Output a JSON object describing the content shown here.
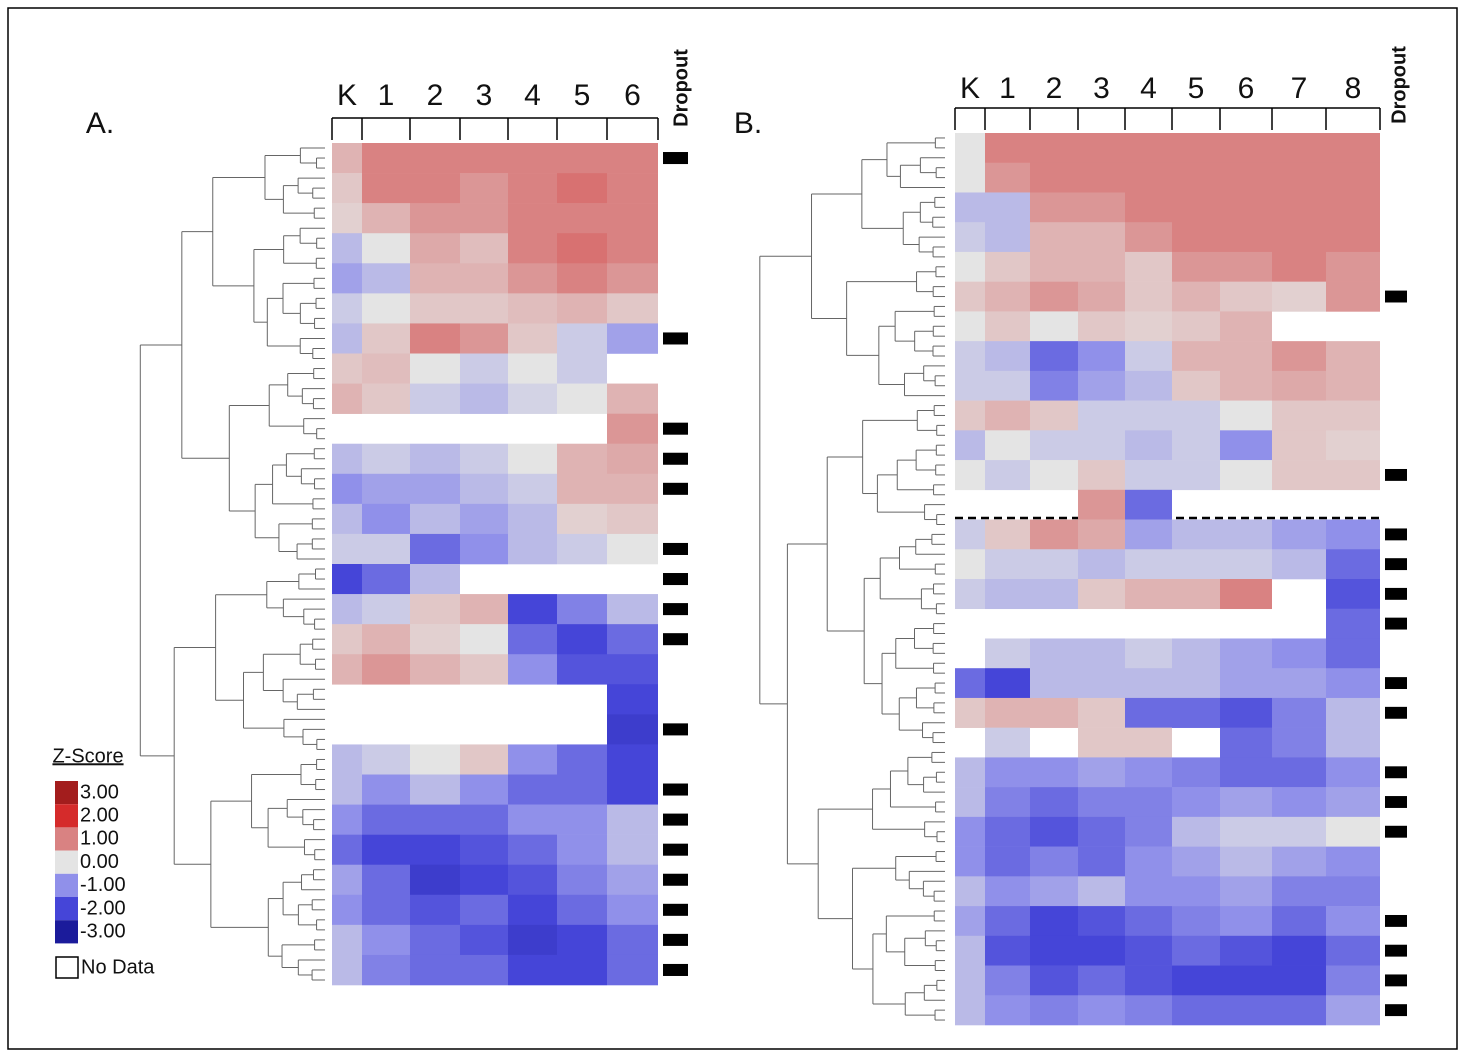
{
  "chart_data": [
    {
      "type": "heatmap",
      "panel_label": "A.",
      "categories": [
        "K",
        "1",
        "2",
        "3",
        "4",
        "5",
        "6"
      ],
      "dropout_label": "Dropout",
      "values": [
        [
          0.5,
          1,
          1,
          1,
          1,
          1,
          1
        ],
        [
          0.3,
          1,
          1,
          0.8,
          1,
          1.2,
          1
        ],
        [
          0.2,
          0.5,
          0.8,
          0.8,
          1,
          1,
          1
        ],
        [
          -0.5,
          0,
          0.6,
          0.4,
          1,
          1.2,
          1
        ],
        [
          -0.8,
          -0.5,
          0.5,
          0.5,
          0.8,
          1,
          0.8
        ],
        [
          -0.3,
          0,
          0.3,
          0.3,
          0.4,
          0.5,
          0.3
        ],
        [
          -0.5,
          0.3,
          1,
          0.8,
          0.3,
          -0.3,
          -0.8
        ],
        [
          0.3,
          0.4,
          0,
          -0.3,
          0,
          -0.3,
          null
        ],
        [
          0.5,
          0.3,
          -0.3,
          -0.5,
          -0.2,
          0,
          0.5
        ],
        [
          null,
          null,
          null,
          null,
          null,
          null,
          0.8
        ],
        [
          -0.5,
          -0.3,
          -0.5,
          -0.3,
          0,
          0.5,
          0.6
        ],
        [
          -1,
          -0.8,
          -0.8,
          -0.5,
          -0.3,
          0.5,
          0.5
        ],
        [
          -0.5,
          -1,
          -0.5,
          -0.8,
          -0.5,
          0.2,
          0.3
        ],
        [
          -0.3,
          -0.3,
          -1.5,
          -1,
          -0.5,
          -0.3,
          0
        ],
        [
          -2,
          -1.5,
          -0.5,
          null,
          null,
          null,
          null
        ],
        [
          -0.5,
          -0.3,
          0.3,
          0.5,
          -2,
          -1.2,
          -0.5
        ],
        [
          0.3,
          0.5,
          0.2,
          0,
          -1.5,
          -2,
          -1.5
        ],
        [
          0.5,
          0.8,
          0.5,
          0.3,
          -1,
          -1.8,
          -1.8
        ],
        [
          null,
          null,
          null,
          null,
          null,
          null,
          -2
        ],
        [
          null,
          null,
          null,
          null,
          null,
          null,
          -2.2
        ],
        [
          -0.5,
          -0.3,
          0,
          0.3,
          -1,
          -1.5,
          -2
        ],
        [
          -0.5,
          -1,
          -0.5,
          -1,
          -1.5,
          -1.5,
          -2
        ],
        [
          -1,
          -1.5,
          -1.5,
          -1.5,
          -1,
          -1,
          -0.5
        ],
        [
          -1.5,
          -2,
          -2,
          -1.8,
          -1.5,
          -1,
          -0.5
        ],
        [
          -0.8,
          -1.5,
          -2.2,
          -2,
          -1.8,
          -1.2,
          -0.8
        ],
        [
          -1,
          -1.5,
          -1.8,
          -1.5,
          -2,
          -1.5,
          -1
        ],
        [
          -0.5,
          -1,
          -1.5,
          -1.8,
          -2.2,
          -2,
          -1.5
        ],
        [
          -0.5,
          -1.2,
          -1.5,
          -1.5,
          -2,
          -2,
          -1.5
        ]
      ],
      "dropout": [
        1,
        0,
        0,
        0,
        0,
        0,
        1,
        0,
        0,
        1,
        1,
        1,
        0,
        1,
        1,
        1,
        1,
        0,
        0,
        1,
        0,
        1,
        1,
        1,
        1,
        1,
        1,
        1
      ]
    },
    {
      "type": "heatmap",
      "panel_label": "B.",
      "categories": [
        "K",
        "1",
        "2",
        "3",
        "4",
        "5",
        "6",
        "7",
        "8"
      ],
      "dropout_label": "Dropout",
      "values": [
        [
          0,
          1,
          1,
          1,
          1,
          1,
          1,
          1,
          1
        ],
        [
          0,
          0.8,
          1,
          1,
          1,
          1,
          1,
          1,
          1
        ],
        [
          -0.5,
          -0.5,
          0.8,
          0.8,
          1,
          1,
          1,
          1,
          1
        ],
        [
          -0.3,
          -0.5,
          0.5,
          0.5,
          0.8,
          1,
          1,
          1,
          1
        ],
        [
          0,
          0.3,
          0.5,
          0.5,
          0.3,
          0.8,
          0.8,
          1,
          0.8
        ],
        [
          0.3,
          0.5,
          0.8,
          0.6,
          0.3,
          0.5,
          0.3,
          0.2,
          0.8
        ],
        [
          0,
          0.3,
          0,
          0.3,
          0.2,
          0.3,
          0.5,
          null,
          null
        ],
        [
          -0.3,
          -0.5,
          -1.5,
          -1,
          -0.3,
          0.5,
          0.5,
          0.8,
          0.5
        ],
        [
          -0.3,
          -0.3,
          -1.2,
          -0.8,
          -0.5,
          0.3,
          0.5,
          0.6,
          0.5
        ],
        [
          0.3,
          0.5,
          0.3,
          -0.3,
          -0.3,
          -0.3,
          0,
          0.3,
          0.3
        ],
        [
          -0.5,
          0,
          -0.3,
          -0.3,
          -0.5,
          -0.3,
          -1,
          0.3,
          0.2
        ],
        [
          0,
          -0.3,
          0,
          0.3,
          -0.3,
          -0.3,
          0,
          0.3,
          0.3
        ],
        [
          null,
          null,
          null,
          0.8,
          -1.5,
          null,
          null,
          null,
          null
        ],
        [
          -0.3,
          0.3,
          0.8,
          0.6,
          -0.8,
          -0.5,
          -0.5,
          -0.8,
          -1
        ],
        [
          0,
          -0.3,
          -0.3,
          -0.5,
          -0.3,
          -0.3,
          -0.3,
          -0.5,
          -1.5
        ],
        [
          -0.3,
          -0.5,
          -0.5,
          0.3,
          0.5,
          0.5,
          1,
          null,
          -1.8
        ],
        [
          null,
          null,
          null,
          null,
          null,
          null,
          null,
          null,
          -1.5
        ],
        [
          null,
          -0.3,
          -0.5,
          -0.5,
          -0.3,
          -0.5,
          -0.8,
          -1,
          -1.5
        ],
        [
          -1.5,
          -2,
          -0.5,
          -0.5,
          -0.5,
          -0.5,
          -0.8,
          -0.8,
          -1
        ],
        [
          0.3,
          0.5,
          0.5,
          0.3,
          -1.5,
          -1.5,
          -1.8,
          -1.2,
          -0.5
        ],
        [
          null,
          -0.3,
          null,
          0.3,
          0.3,
          null,
          -1.5,
          -1.2,
          -0.5
        ],
        [
          -0.5,
          -1,
          -1,
          -0.8,
          -1,
          -1.2,
          -1.5,
          -1.5,
          -1
        ],
        [
          -0.5,
          -1.2,
          -1.5,
          -1.2,
          -1.2,
          -1,
          -0.8,
          -1,
          -0.8
        ],
        [
          -1,
          -1.5,
          -1.8,
          -1.5,
          -1.2,
          -0.5,
          -0.3,
          -0.3,
          0
        ],
        [
          -1,
          -1.5,
          -1.2,
          -1.5,
          -1,
          -0.8,
          -0.5,
          -0.8,
          -1
        ],
        [
          -0.5,
          -1,
          -0.8,
          -0.5,
          -1,
          -1,
          -0.8,
          -1.2,
          -1.2
        ],
        [
          -0.8,
          -1.5,
          -2,
          -1.8,
          -1.5,
          -1.2,
          -1,
          -1.5,
          -1
        ],
        [
          -0.5,
          -1.8,
          -2,
          -2,
          -1.8,
          -1.5,
          -1.8,
          -2,
          -1.5
        ],
        [
          -0.5,
          -1.2,
          -1.8,
          -1.5,
          -1.8,
          -2,
          -2,
          -2,
          -1.2
        ],
        [
          -0.5,
          -1,
          -1.2,
          -1,
          -1.2,
          -1.5,
          -1.5,
          -1.5,
          -0.8
        ]
      ],
      "dropout": [
        0,
        0,
        0,
        0,
        0,
        1,
        0,
        0,
        0,
        0,
        0,
        1,
        0,
        1,
        1,
        1,
        1,
        0,
        1,
        1,
        0,
        1,
        1,
        1,
        0,
        0,
        1,
        1,
        1,
        1
      ]
    }
  ],
  "legend": {
    "title": "Z-Score",
    "no_data_label": "No Data",
    "stops": [
      {
        "value": 3,
        "label": "3.00",
        "color": "#a31d1d"
      },
      {
        "value": 2,
        "label": "2.00",
        "color": "#d52b2b"
      },
      {
        "value": 1,
        "label": "1.00",
        "color": "#d98282"
      },
      {
        "value": 0,
        "label": "0.00",
        "color": "#e4e4e4"
      },
      {
        "value": -1,
        "label": "-1.00",
        "color": "#9090ea"
      },
      {
        "value": -2,
        "label": "-2.00",
        "color": "#4545d8"
      },
      {
        "value": -3,
        "label": "-3.00",
        "color": "#1b1b9b"
      }
    ]
  }
}
